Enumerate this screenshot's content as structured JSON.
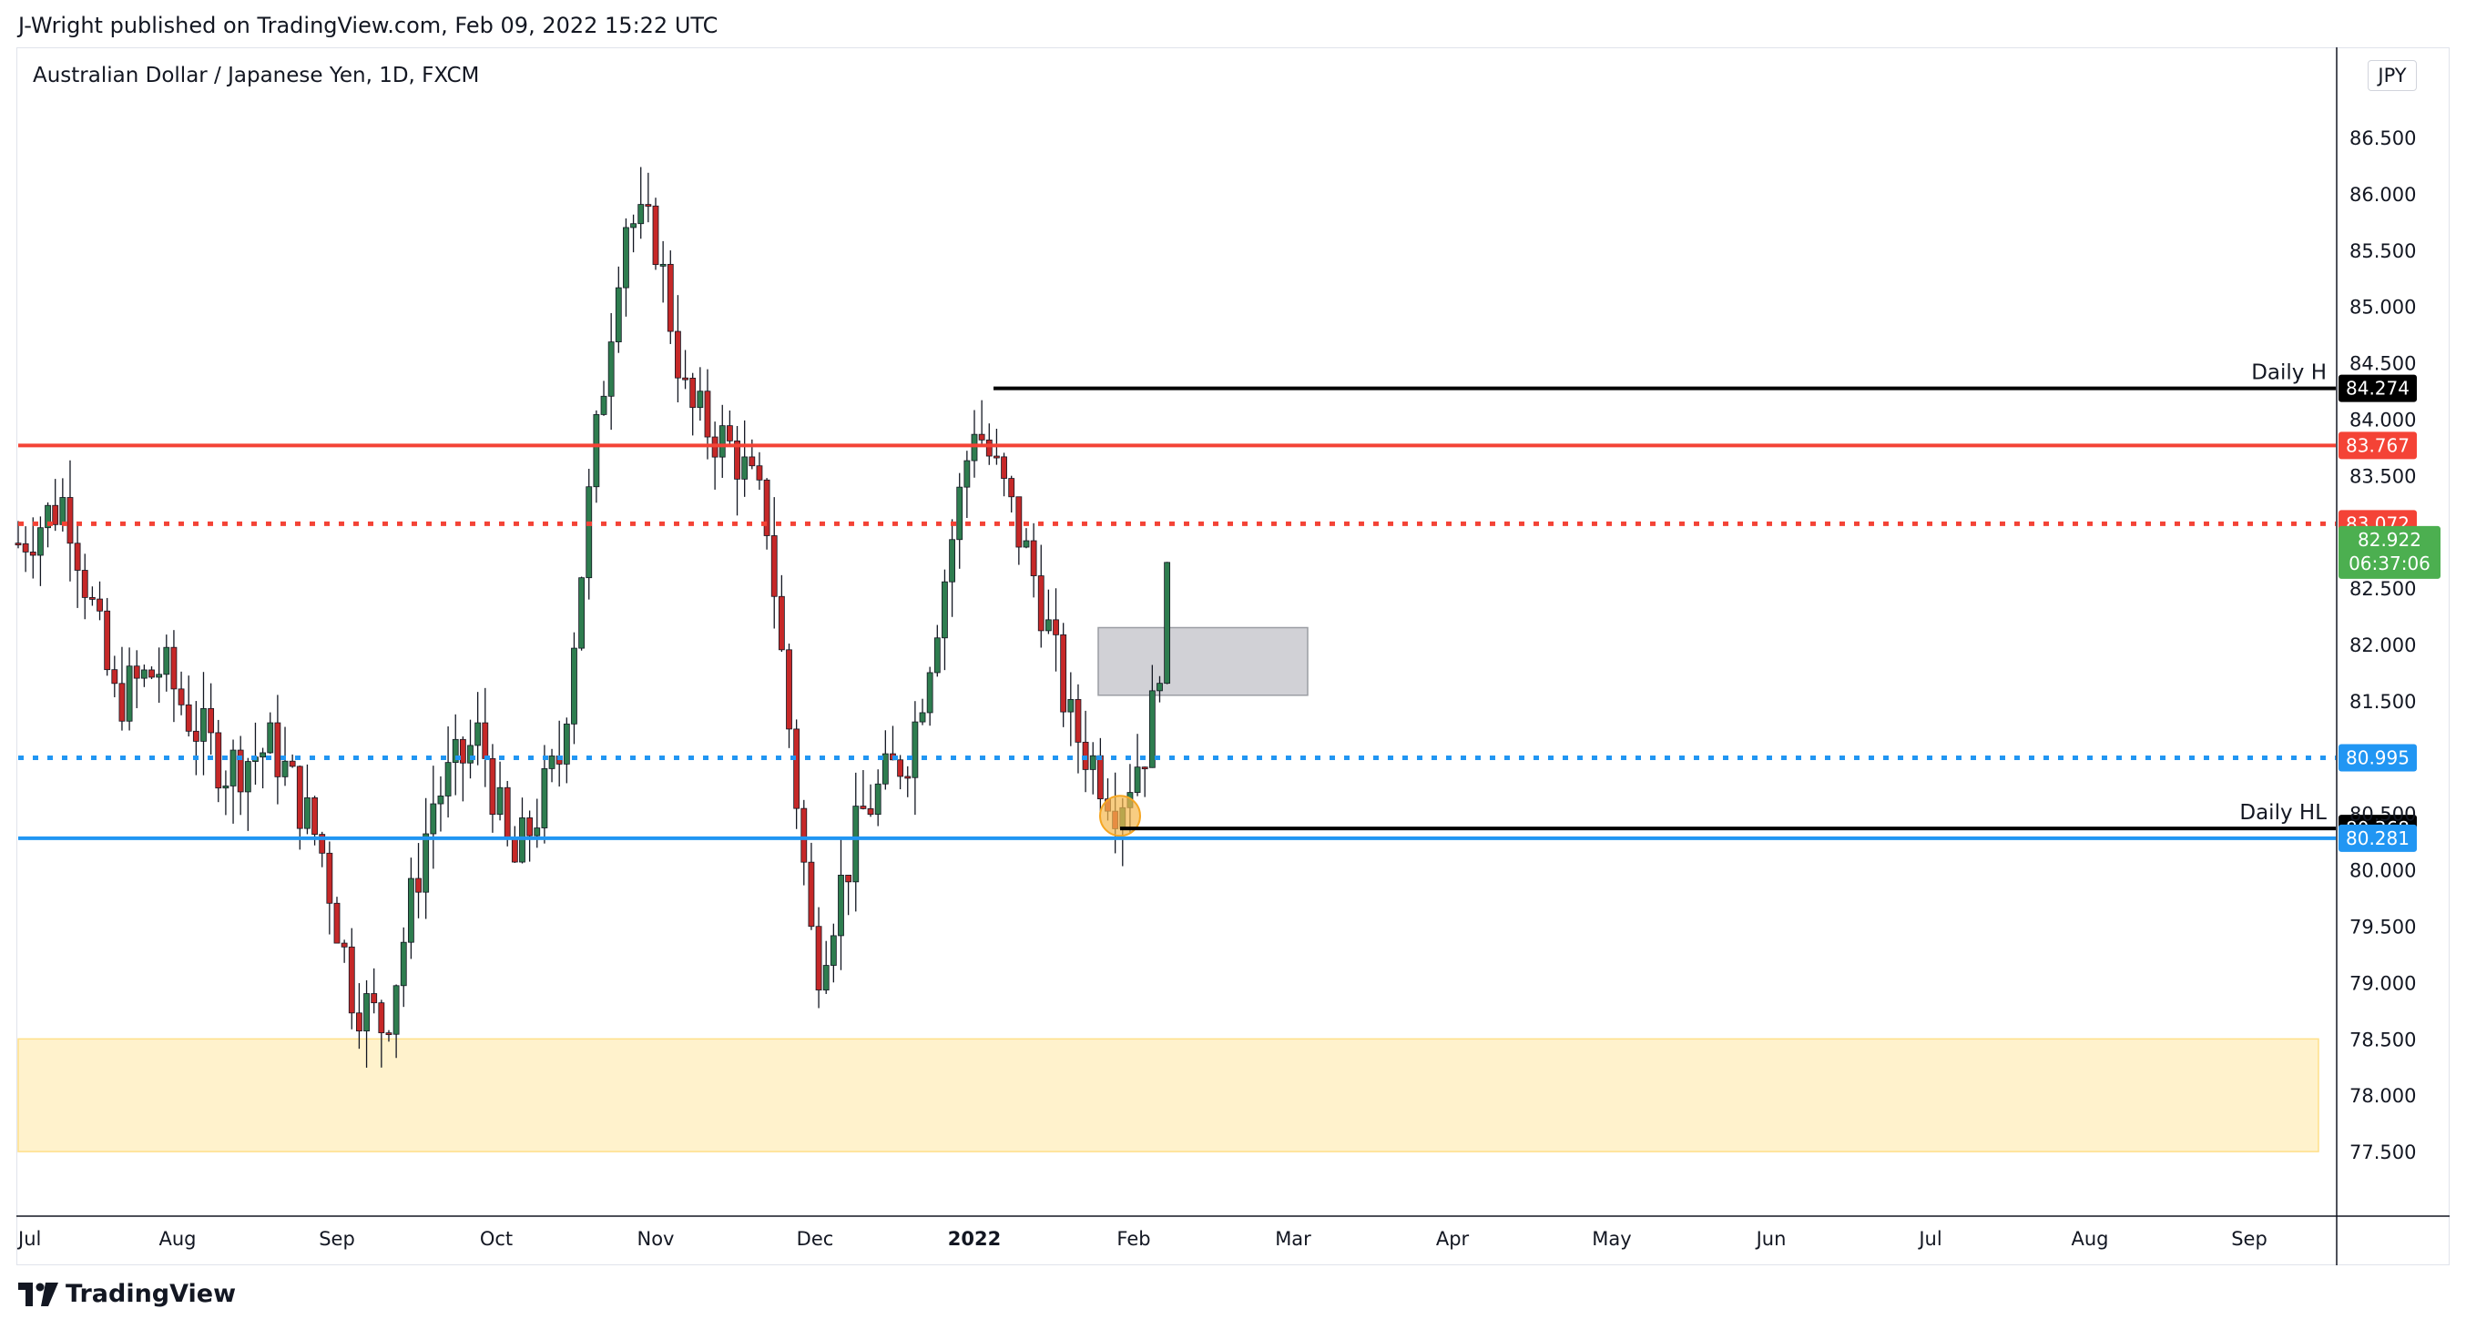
{
  "header": {
    "published": "J-Wright published on TradingView.com, Feb 09, 2022 15:22 UTC"
  },
  "legend": {
    "symbol": "Australian Dollar / Japanese Yen, 1D, FXCM"
  },
  "currency_badge": "JPY",
  "footer": {
    "brand": "TradingView"
  },
  "colors": {
    "up": "#26a69a",
    "up_body": "#2e7d4f",
    "down": "#c62828",
    "red_level": "#f44336",
    "blue_level": "#2196f3",
    "black_level": "#000000",
    "zone_yellow": "#fff2cc",
    "zone_grey": "#c9cacf",
    "price_tag": "#4caf50"
  },
  "chart_data": {
    "type": "candlestick",
    "title": "Australian Dollar / Japanese Yen, 1D, FXCM",
    "ylim": [
      77.0,
      87.3
    ],
    "y_ticks": [
      "86.500",
      "86.000",
      "85.500",
      "85.000",
      "84.500",
      "84.000",
      "83.500",
      "82.500",
      "82.000",
      "81.500",
      "80.500",
      "80.000",
      "79.500",
      "79.000",
      "78.500",
      "78.000",
      "77.500"
    ],
    "x_ticks": [
      "Jul",
      "Aug",
      "Sep",
      "Oct",
      "Nov",
      "Dec",
      "2022",
      "Feb",
      "Mar",
      "Apr",
      "May",
      "Jun",
      "Jul",
      "Aug",
      "Sep"
    ],
    "x_tick_months": [
      0,
      1,
      2,
      3,
      4,
      5,
      6,
      7,
      8,
      9,
      10,
      11,
      12,
      13,
      14
    ],
    "close_path": [
      [
        0.0,
        82.9
      ],
      [
        0.3,
        83.3
      ],
      [
        0.6,
        81.5
      ],
      [
        0.9,
        81.8
      ],
      [
        1.1,
        81.3
      ],
      [
        1.3,
        80.9
      ],
      [
        1.6,
        81.1
      ],
      [
        1.9,
        80.2
      ],
      [
        2.1,
        78.9
      ],
      [
        2.3,
        78.6
      ],
      [
        2.6,
        80.6
      ],
      [
        2.9,
        81.2
      ],
      [
        3.1,
        80.0
      ],
      [
        3.4,
        81.0
      ],
      [
        3.6,
        83.5
      ],
      [
        3.8,
        85.8
      ],
      [
        4.0,
        85.6
      ],
      [
        4.2,
        84.1
      ],
      [
        4.5,
        83.7
      ],
      [
        4.7,
        83.1
      ],
      [
        5.0,
        79.1
      ],
      [
        5.3,
        80.5
      ],
      [
        5.6,
        81.1
      ],
      [
        5.8,
        82.5
      ],
      [
        6.0,
        84.0
      ],
      [
        6.2,
        83.3
      ],
      [
        6.4,
        82.5
      ],
      [
        6.6,
        81.3
      ],
      [
        6.9,
        80.6
      ],
      [
        7.1,
        81.2
      ],
      [
        7.25,
        82.922
      ]
    ],
    "last_price": "82.922",
    "countdown": "06:37:06",
    "levels": [
      {
        "name": "red_solid",
        "value": 83.767,
        "label": "83.767",
        "style": "solid",
        "color": "#f44336"
      },
      {
        "name": "red_dotted",
        "value": 83.072,
        "label": "83.072",
        "style": "dotted",
        "color": "#f44336"
      },
      {
        "name": "daily_h",
        "value": 84.274,
        "label": "84.274",
        "text": "Daily H",
        "style": "solid",
        "color": "#000000"
      },
      {
        "name": "daily_hl",
        "value": 80.368,
        "label": "80.368",
        "text": "Daily HL",
        "style": "solid",
        "color": "#000000"
      },
      {
        "name": "blue_dotted",
        "value": 80.995,
        "label": "80.995",
        "style": "dotted",
        "color": "#2196f3"
      },
      {
        "name": "blue_solid",
        "value": 80.281,
        "label": "80.281",
        "style": "solid",
        "color": "#2196f3"
      }
    ],
    "zones": [
      {
        "name": "demand_zone",
        "y_top": 78.5,
        "y_bottom": 77.5,
        "color": "#fff2cc"
      },
      {
        "name": "grey_box",
        "y_top": 82.15,
        "y_bottom": 81.55,
        "color": "#c9cacf"
      }
    ],
    "grid": false,
    "legend": "top-left"
  }
}
